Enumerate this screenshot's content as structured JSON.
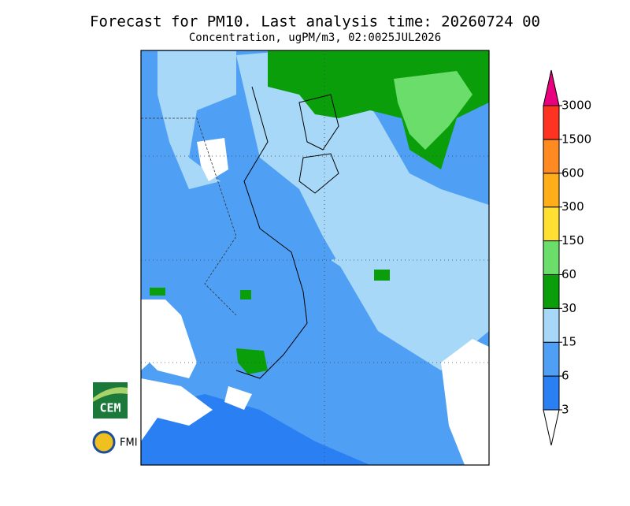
{
  "header": {
    "title": "Forecast for PM10. Last analysis time: 20260724 00",
    "subtitle": "Concentration, ugPM/m3, 02:0025JUL2026"
  },
  "colorbar": {
    "levels": [
      3,
      6,
      15,
      30,
      60,
      150,
      300,
      600,
      1500,
      3000
    ],
    "colors": [
      "#ffffff",
      "#2a7ff2",
      "#4fa0f4",
      "#a8d8f8",
      "#0a9f0a",
      "#6add6a",
      "#ffe033",
      "#ffae1a",
      "#ff8a22",
      "#ff3322",
      "#e8007e"
    ]
  },
  "logos": {
    "cem": "CEM",
    "fmi": "FMI"
  }
}
